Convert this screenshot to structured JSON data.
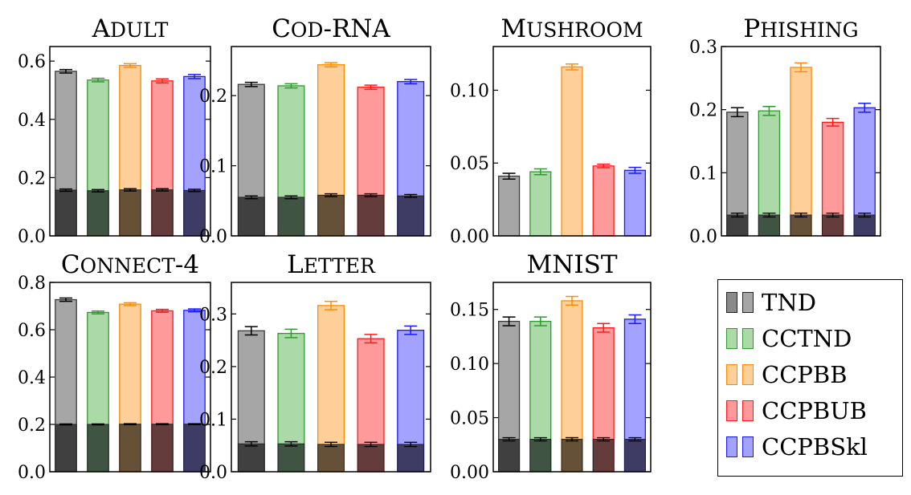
{
  "chart_data": [
    {
      "type": "bar",
      "title": "Adult",
      "categories": [
        "TND",
        "CCTND",
        "CCPBB",
        "CCPBUB",
        "CCPBSkl"
      ],
      "ylim": [
        0,
        0.65
      ],
      "yticks": [
        "0.0",
        "0.2",
        "0.4",
        "0.6"
      ],
      "ytick_values": [
        0,
        0.2,
        0.4,
        0.6
      ],
      "values": [
        0.565,
        0.535,
        0.585,
        0.532,
        0.547
      ],
      "errors": [
        0.006,
        0.006,
        0.006,
        0.007,
        0.007
      ],
      "inner_values": [
        0.157,
        0.155,
        0.158,
        0.158,
        0.156
      ],
      "inner_errors": [
        0.004,
        0.004,
        0.004,
        0.004,
        0.004
      ]
    },
    {
      "type": "bar",
      "title": "Cod-RNA",
      "categories": [
        "TND",
        "CCTND",
        "CCPBB",
        "CCPBUB",
        "CCPBSkl"
      ],
      "ylim": [
        0,
        0.27
      ],
      "yticks": [
        "0.0",
        "0.1",
        "0.2"
      ],
      "ytick_values": [
        0,
        0.1,
        0.2
      ],
      "values": [
        0.216,
        0.214,
        0.244,
        0.212,
        0.22
      ],
      "errors": [
        0.003,
        0.003,
        0.003,
        0.003,
        0.003
      ],
      "inner_values": [
        0.055,
        0.055,
        0.058,
        0.058,
        0.057
      ],
      "inner_errors": [
        0.002,
        0.002,
        0.002,
        0.002,
        0.002
      ]
    },
    {
      "type": "bar",
      "title": "Mushroom",
      "categories": [
        "TND",
        "CCTND",
        "CCPBB",
        "CCPBUB",
        "CCPBSkl"
      ],
      "ylim": [
        0,
        0.13
      ],
      "yticks": [
        "0.00",
        "0.05",
        "0.10"
      ],
      "ytick_values": [
        0,
        0.05,
        0.1
      ],
      "values": [
        0.041,
        0.044,
        0.116,
        0.048,
        0.045
      ],
      "errors": [
        0.002,
        0.002,
        0.002,
        0.0012,
        0.002
      ],
      "inner_values": [],
      "inner_errors": []
    },
    {
      "type": "bar",
      "title": "Phishing",
      "categories": [
        "TND",
        "CCTND",
        "CCPBB",
        "CCPBUB",
        "CCPBSkl"
      ],
      "ylim": [
        0,
        0.3
      ],
      "yticks": [
        "0.0",
        "0.1",
        "0.2",
        "0.3"
      ],
      "ytick_values": [
        0,
        0.1,
        0.2,
        0.3
      ],
      "values": [
        0.196,
        0.198,
        0.267,
        0.18,
        0.203
      ],
      "errors": [
        0.007,
        0.007,
        0.007,
        0.006,
        0.007
      ],
      "inner_values": [
        0.033,
        0.033,
        0.033,
        0.033,
        0.033
      ],
      "inner_errors": [
        0.003,
        0.003,
        0.003,
        0.003,
        0.003
      ]
    },
    {
      "type": "bar",
      "title": "Connect-4",
      "categories": [
        "TND",
        "CCTND",
        "CCPBB",
        "CCPBUB",
        "CCPBSkl"
      ],
      "ylim": [
        0,
        0.8
      ],
      "yticks": [
        "0.0",
        "0.2",
        "0.4",
        "0.6",
        "0.8"
      ],
      "ytick_values": [
        0,
        0.2,
        0.4,
        0.6,
        0.8
      ],
      "values": [
        0.727,
        0.673,
        0.708,
        0.68,
        0.682
      ],
      "errors": [
        0.007,
        0.006,
        0.006,
        0.006,
        0.006
      ],
      "inner_values": [
        0.2,
        0.2,
        0.201,
        0.201,
        0.201
      ],
      "inner_errors": [
        0.002,
        0.002,
        0.002,
        0.002,
        0.002
      ]
    },
    {
      "type": "bar",
      "title": "Letter",
      "categories": [
        "TND",
        "CCTND",
        "CCPBB",
        "CCPBUB",
        "CCPBSkl"
      ],
      "ylim": [
        0,
        0.36
      ],
      "yticks": [
        "0.0",
        "0.1",
        "0.2",
        "0.3"
      ],
      "ytick_values": [
        0,
        0.1,
        0.2,
        0.3
      ],
      "values": [
        0.268,
        0.263,
        0.316,
        0.253,
        0.269
      ],
      "errors": [
        0.008,
        0.008,
        0.008,
        0.008,
        0.008
      ],
      "inner_values": [
        0.053,
        0.053,
        0.052,
        0.052,
        0.052
      ],
      "inner_errors": [
        0.004,
        0.004,
        0.004,
        0.004,
        0.004
      ]
    },
    {
      "type": "bar",
      "title": "MNIST",
      "categories": [
        "TND",
        "CCTND",
        "CCPBB",
        "CCPBUB",
        "CCPBSkl"
      ],
      "ylim": [
        0,
        0.175
      ],
      "yticks": [
        "0.00",
        "0.05",
        "0.10",
        "0.15"
      ],
      "ytick_values": [
        0,
        0.05,
        0.1,
        0.15
      ],
      "values": [
        0.139,
        0.139,
        0.158,
        0.133,
        0.141
      ],
      "errors": [
        0.004,
        0.004,
        0.004,
        0.004,
        0.004
      ],
      "inner_values": [
        0.03,
        0.03,
        0.03,
        0.03,
        0.03
      ],
      "inner_errors": [
        0.0015,
        0.0015,
        0.0015,
        0.0015,
        0.0015
      ]
    }
  ],
  "legend": {
    "placement": "bottom-right",
    "items": [
      {
        "label": "TND",
        "color": "#808080"
      },
      {
        "label": "CCTND",
        "color": "#2e9a2e"
      },
      {
        "label": "CCPBB",
        "color": "#ff8c00"
      },
      {
        "label": "CCPBUB",
        "color": "#ff0000"
      },
      {
        "label": "CCPBSkl",
        "color": "#0000ff"
      }
    ]
  },
  "colors": {
    "TND": {
      "fill": "#a6a6a6",
      "stroke": "#3a3a3a",
      "inner": "#404040"
    },
    "CCTND": {
      "fill": "#acd9a8",
      "stroke": "#2e9a2e",
      "inner": "#3f5442"
    },
    "CCPBB": {
      "fill": "#ffcf9a",
      "stroke": "#ff8c00",
      "inner": "#655038"
    },
    "CCPBUB": {
      "fill": "#ff9a9a",
      "stroke": "#ff1a1a",
      "inner": "#653c3c"
    },
    "CCPBSkl": {
      "fill": "#a3a3ff",
      "stroke": "#1a1aff",
      "inner": "#3e3c65"
    }
  }
}
